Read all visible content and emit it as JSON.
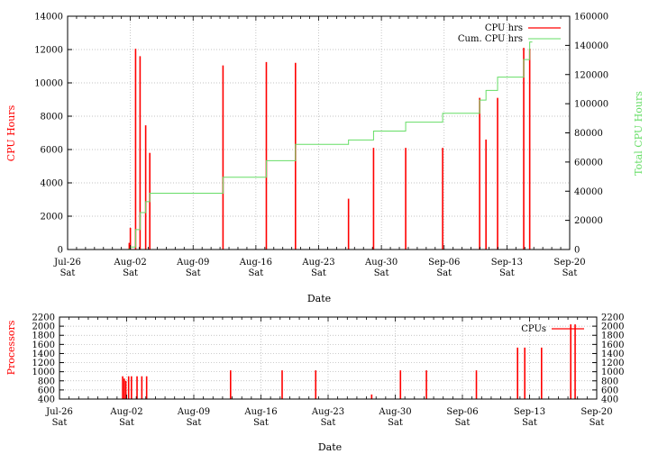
{
  "colors": {
    "cpu": "#ff0000",
    "cumulative": "#66dd66",
    "processors": "#ff0000",
    "grid": "#b0b0b0",
    "axis": "#000000"
  },
  "chart_data": [
    {
      "type": "bar",
      "xlabel": "Date",
      "ylabel": "CPU Hours",
      "y2label": "Total CPU Hours",
      "grid": true,
      "legend_position": "top-right",
      "xlim": [
        "2008-07-26",
        "2008-09-20"
      ],
      "ylim": [
        0,
        14000
      ],
      "y2lim": [
        0,
        160000
      ],
      "x_ticks": [
        {
          "line1": "Jul-26",
          "line2": "Sat"
        },
        {
          "line1": "Aug-02",
          "line2": "Sat"
        },
        {
          "line1": "Aug-09",
          "line2": "Sat"
        },
        {
          "line1": "Aug-16",
          "line2": "Sat"
        },
        {
          "line1": "Aug-23",
          "line2": "Sat"
        },
        {
          "line1": "Aug-30",
          "line2": "Sat"
        },
        {
          "line1": "Sep-06",
          "line2": "Sat"
        },
        {
          "line1": "Sep-13",
          "line2": "Sat"
        },
        {
          "line1": "Sep-20",
          "line2": "Sat"
        }
      ],
      "y_ticks": [
        "0",
        "2000",
        "4000",
        "6000",
        "8000",
        "10000",
        "12000",
        "14000"
      ],
      "y2_ticks": [
        "0",
        "20000",
        "40000",
        "60000",
        "80000",
        "100000",
        "120000",
        "140000",
        "160000"
      ],
      "series": [
        {
          "name": "CPU hrs",
          "type": "bar",
          "points": [
            {
              "x": "2008-08-01 21:00",
              "y": 400
            },
            {
              "x": "2008-08-02 00:00",
              "y": 1300
            },
            {
              "x": "2008-08-02 14:00",
              "y": 12050
            },
            {
              "x": "2008-08-03 02:00",
              "y": 11600
            },
            {
              "x": "2008-08-03 17:00",
              "y": 7450
            },
            {
              "x": "2008-08-04 04:00",
              "y": 5800
            },
            {
              "x": "2008-08-12 08:00",
              "y": 11050
            },
            {
              "x": "2008-08-17 04:00",
              "y": 11250
            },
            {
              "x": "2008-08-20 10:00",
              "y": 11200
            },
            {
              "x": "2008-08-26 08:00",
              "y": 3050
            },
            {
              "x": "2008-08-29 03:00",
              "y": 6100
            },
            {
              "x": "2008-09-01 17:00",
              "y": 6100
            },
            {
              "x": "2008-09-05 20:00",
              "y": 6100
            },
            {
              "x": "2008-09-09 23:00",
              "y": 9100
            },
            {
              "x": "2008-09-10 16:00",
              "y": 6600
            },
            {
              "x": "2008-09-11 23:00",
              "y": 9100
            },
            {
              "x": "2008-09-14 21:00",
              "y": 12100
            },
            {
              "x": "2008-09-15 13:00",
              "y": 12050
            }
          ]
        },
        {
          "name": "Cum. CPU hrs",
          "type": "step",
          "axis": "y2",
          "points": [
            {
              "x": "2008-07-26 00:00",
              "y": 0
            },
            {
              "x": "2008-08-01 21:00",
              "y": 400
            },
            {
              "x": "2008-08-02 00:00",
              "y": 1700
            },
            {
              "x": "2008-08-02 14:00",
              "y": 13700
            },
            {
              "x": "2008-08-03 02:00",
              "y": 25300
            },
            {
              "x": "2008-08-03 17:00",
              "y": 32800
            },
            {
              "x": "2008-08-04 04:00",
              "y": 38600
            },
            {
              "x": "2008-08-12 08:00",
              "y": 49600
            },
            {
              "x": "2008-08-17 04:00",
              "y": 60900
            },
            {
              "x": "2008-08-20 10:00",
              "y": 72100
            },
            {
              "x": "2008-08-26 08:00",
              "y": 75100
            },
            {
              "x": "2008-08-29 03:00",
              "y": 81200
            },
            {
              "x": "2008-09-01 17:00",
              "y": 87300
            },
            {
              "x": "2008-09-05 20:00",
              "y": 93400
            },
            {
              "x": "2008-09-09 23:00",
              "y": 102500
            },
            {
              "x": "2008-09-10 16:00",
              "y": 109100
            },
            {
              "x": "2008-09-11 23:00",
              "y": 118200
            },
            {
              "x": "2008-09-14 21:00",
              "y": 130300
            },
            {
              "x": "2008-09-15 13:00",
              "y": 142300
            },
            {
              "x": "2008-09-15 20:00",
              "y": 142300
            }
          ]
        }
      ]
    },
    {
      "type": "bar",
      "xlabel": "Date",
      "ylabel": "Processors",
      "grid": true,
      "legend_position": "top-right",
      "xlim": [
        "2008-07-26",
        "2008-09-20"
      ],
      "ylim": [
        400,
        2200
      ],
      "x_ticks": [
        {
          "line1": "Jul-26",
          "line2": "Sat"
        },
        {
          "line1": "Aug-02",
          "line2": "Sat"
        },
        {
          "line1": "Aug-09",
          "line2": "Sat"
        },
        {
          "line1": "Aug-16",
          "line2": "Sat"
        },
        {
          "line1": "Aug-23",
          "line2": "Sat"
        },
        {
          "line1": "Aug-30",
          "line2": "Sat"
        },
        {
          "line1": "Sep-06",
          "line2": "Sat"
        },
        {
          "line1": "Sep-13",
          "line2": "Sat"
        },
        {
          "line1": "Sep-20",
          "line2": "Sat"
        }
      ],
      "y_ticks": [
        "400",
        "600",
        "800",
        "1000",
        "1200",
        "1400",
        "1600",
        "1800",
        "2000",
        "2200"
      ],
      "series": [
        {
          "name": "CPUs",
          "type": "bar",
          "points": [
            {
              "x": "2008-08-01 14:00",
              "y": 900
            },
            {
              "x": "2008-08-01 18:00",
              "y": 850
            },
            {
              "x": "2008-08-01 22:00",
              "y": 800
            },
            {
              "x": "2008-08-02 05:00",
              "y": 900
            },
            {
              "x": "2008-08-02 12:00",
              "y": 900
            },
            {
              "x": "2008-08-03 02:00",
              "y": 900
            },
            {
              "x": "2008-08-03 14:00",
              "y": 900
            },
            {
              "x": "2008-08-04 02:00",
              "y": 900
            },
            {
              "x": "2008-08-12 20:00",
              "y": 1030
            },
            {
              "x": "2008-08-18 05:00",
              "y": 1030
            },
            {
              "x": "2008-08-21 17:00",
              "y": 1030
            },
            {
              "x": "2008-08-27 13:00",
              "y": 500
            },
            {
              "x": "2008-08-30 13:00",
              "y": 1030
            },
            {
              "x": "2008-09-02 06:00",
              "y": 1030
            },
            {
              "x": "2008-09-07 11:00",
              "y": 1030
            },
            {
              "x": "2008-09-11 18:00",
              "y": 1530
            },
            {
              "x": "2008-09-12 12:00",
              "y": 1530
            },
            {
              "x": "2008-09-14 06:00",
              "y": 1530
            },
            {
              "x": "2008-09-17 07:00",
              "y": 2040
            },
            {
              "x": "2008-09-17 18:00",
              "y": 2040
            }
          ]
        }
      ]
    }
  ]
}
